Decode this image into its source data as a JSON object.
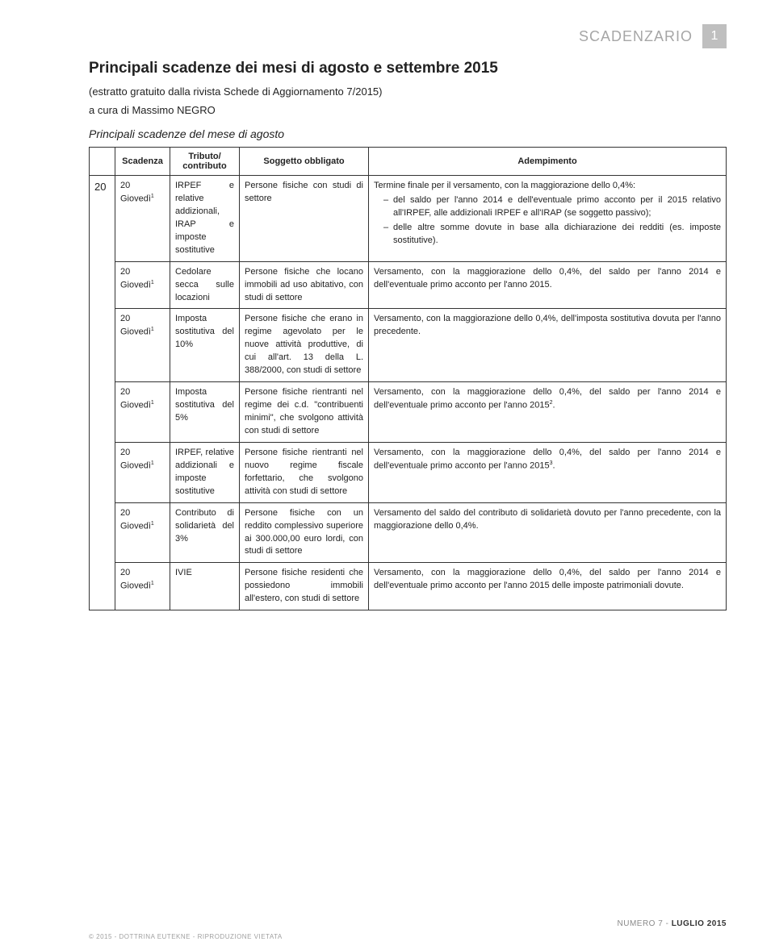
{
  "header": {
    "label": "SCADENZARIO",
    "page_no": "1"
  },
  "title": "Principali scadenze dei mesi di agosto e settembre 2015",
  "subtitle": "(estratto gratuito dalla rivista Schede di Aggiornamento 7/2015)",
  "cura": "a cura di Massimo NEGRO",
  "section": "Principali scadenze del mese di agosto",
  "table": {
    "headers": {
      "scadenza": "Scadenza",
      "tributo": "Tributo/\ncontributo",
      "soggetto": "Soggetto obbligato",
      "ademp": "Adempimento"
    },
    "group_day": "20",
    "rows": [
      {
        "scadenza_day": "20",
        "scadenza_wd": "Giovedì",
        "sup": "1",
        "tributo": "IRPEF e relative addizionali, IRAP e imposte sostitutive",
        "soggetto": "Persone fisiche con studi di settore",
        "ademp_lead": "Termine finale per il versamento, con la maggiorazione dello 0,4%:",
        "ademp_items": [
          "del saldo per l'anno 2014 e dell'eventuale primo acconto per il 2015 relativo all'IRPEF, alle addizionali IRPEF e all'IRAP (se soggetto passivo);",
          "delle altre somme dovute in base alla dichiarazione dei redditi (es. imposte sostitutive)."
        ]
      },
      {
        "scadenza_day": "20",
        "scadenza_wd": "Giovedì",
        "sup": "1",
        "tributo": "Cedolare secca sulle locazioni",
        "soggetto": "Persone fisiche che locano immobili ad uso abitativo, con studi di settore",
        "ademp": "Versamento, con la maggiorazione dello 0,4%, del saldo per l'anno 2014 e dell'eventuale primo acconto per l'anno 2015."
      },
      {
        "scadenza_day": "20",
        "scadenza_wd": "Giovedì",
        "sup": "1",
        "tributo": "Imposta sostitutiva del 10%",
        "soggetto": "Persone fisiche che erano in regime agevolato per le nuove attività produttive, di cui all'art. 13 della L. 388/2000, con studi di settore",
        "ademp": "Versamento, con la maggiorazione dello 0,4%, dell'imposta sostitutiva dovuta per l'anno precedente."
      },
      {
        "scadenza_day": "20",
        "scadenza_wd": "Giovedì",
        "sup": "1",
        "tributo": "Imposta sostitutiva del 5%",
        "soggetto_html": "Persone fisiche rientranti nel regime dei c.d. \"contribuenti minimi\", che svolgono attività con studi di settore",
        "ademp_html": "Versamento, con la maggiorazione dello 0,4%, del saldo per l'anno 2014 e dell'eventuale primo acconto per l'anno 2015",
        "ademp_sup": "2"
      },
      {
        "scadenza_day": "20",
        "scadenza_wd": "Giovedì",
        "sup": "1",
        "tributo": "IRPEF, relative addizionali e imposte sostitutive",
        "soggetto": "Persone fisiche rientranti nel nuovo regime fiscale forfettario, che svolgono attività con studi di settore",
        "ademp_html": "Versamento, con la maggiorazione dello 0,4%, del saldo per l'anno 2014 e dell'eventuale primo acconto per l'anno 2015",
        "ademp_sup": "3"
      },
      {
        "scadenza_day": "20",
        "scadenza_wd": "Giovedì",
        "sup": "1",
        "tributo": "Contributo di solidarietà del 3%",
        "soggetto": "Persone fisiche con un reddito complessivo superiore ai 300.000,00 euro lordi, con studi di settore",
        "ademp": "Versamento del saldo del contributo di solidarietà dovuto per l'anno precedente, con la maggiorazione dello 0,4%."
      },
      {
        "scadenza_day": "20",
        "scadenza_wd": "Giovedì",
        "sup": "1",
        "tributo": "IVIE",
        "soggetto": "Persone fisiche residenti che possiedono immobili all'estero, con studi di settore",
        "ademp": "Versamento, con la maggiorazione dello 0,4%, del saldo per l'anno 2014 e dell'eventuale primo acconto per l'anno 2015 delle imposte patrimoniali dovute."
      }
    ]
  },
  "footer": {
    "issue_label": "NUMERO 7 - ",
    "issue_bold": "LUGLIO 2015",
    "copyright": "© 2015 - DOTTRINA EUTEKNE - RIPRODUZIONE VIETATA"
  }
}
